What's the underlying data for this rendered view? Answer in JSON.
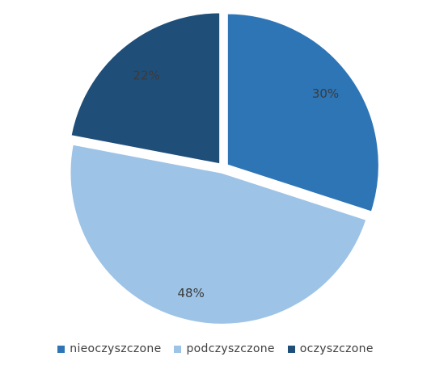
{
  "chart_data": {
    "type": "pie",
    "title": "",
    "categories": [
      "nieoczyszczone",
      "podczyszczone",
      "oczyszczone"
    ],
    "values": [
      30,
      48,
      22
    ],
    "labels": [
      "30%",
      "48%",
      "22%"
    ],
    "colors": [
      "#2e75b6",
      "#9dc3e6",
      "#1f4e79"
    ],
    "start_angle_deg": 0,
    "direction": "clockwise",
    "exploded": true,
    "legend_position": "bottom"
  }
}
